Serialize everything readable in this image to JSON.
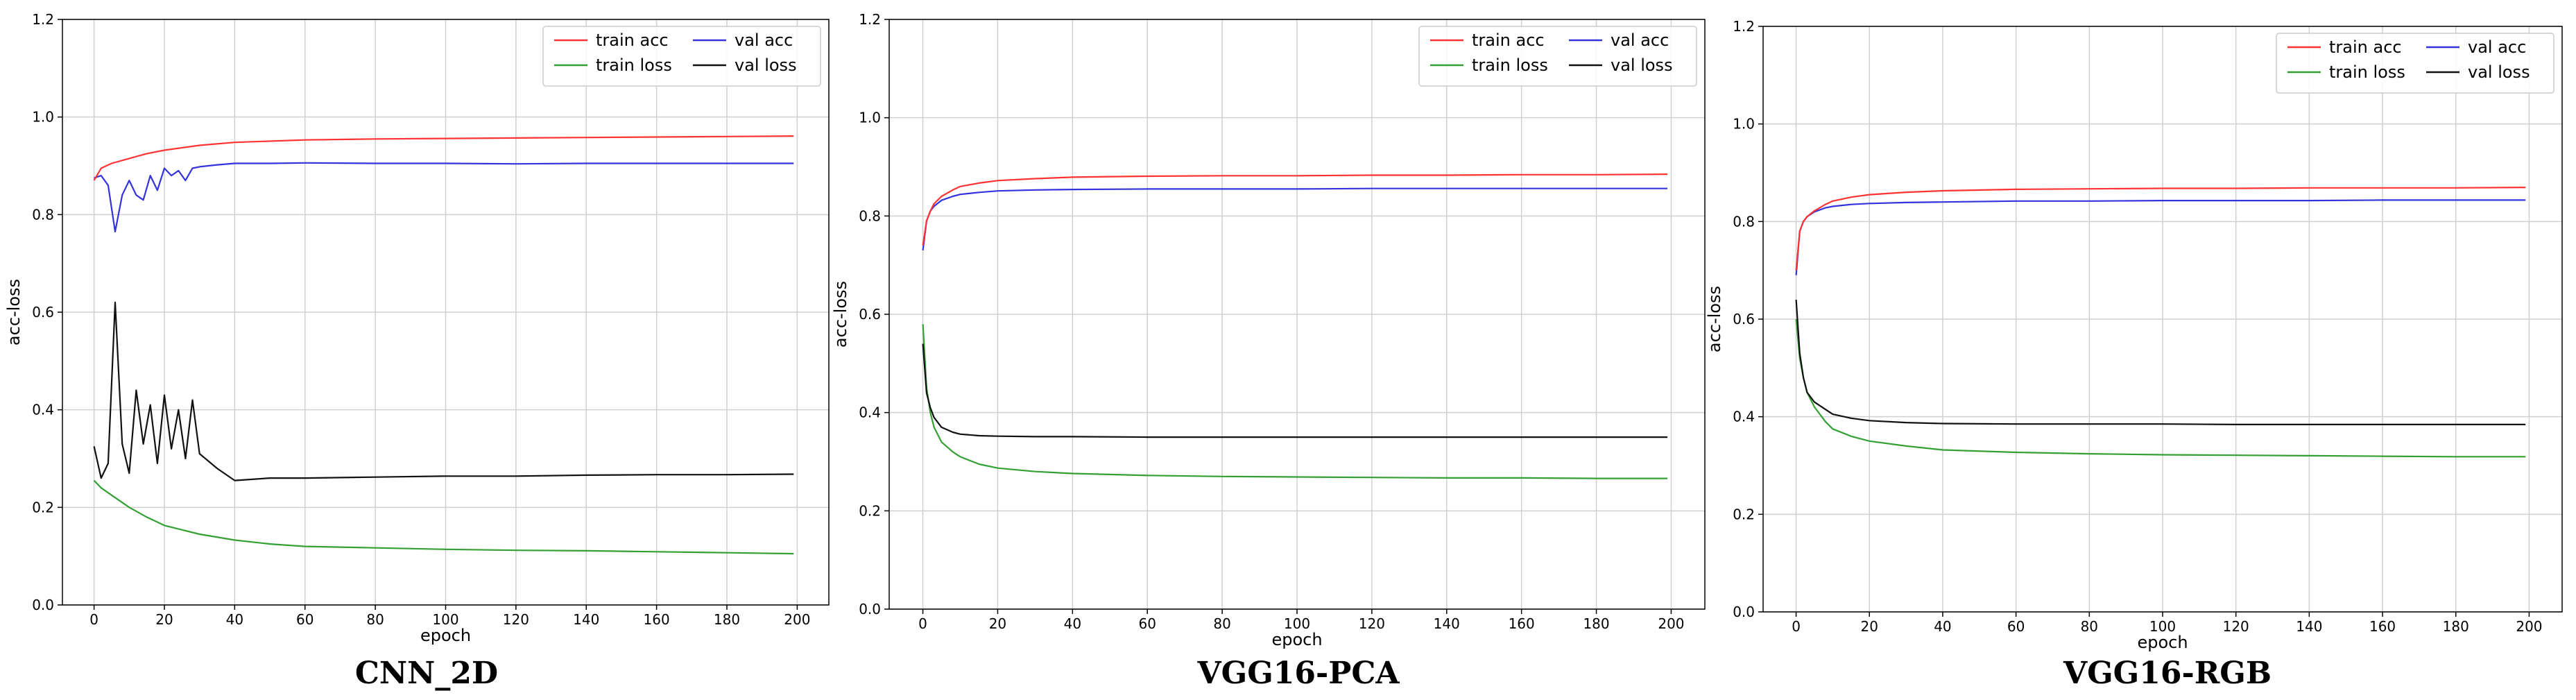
{
  "colors": {
    "train_acc": "#ff3333",
    "val_acc": "#3333dd",
    "train_loss": "#33a033",
    "val_loss": "#111111"
  },
  "chart_data": [
    {
      "type": "line",
      "title": "CNN_2D",
      "xlabel": "epoch",
      "ylabel": "acc-loss",
      "xlim": [
        -9,
        209
      ],
      "ylim": [
        0.0,
        1.2
      ],
      "xticks": [
        0,
        20,
        40,
        60,
        80,
        100,
        120,
        140,
        160,
        180,
        200
      ],
      "yticks": [
        0.0,
        0.2,
        0.4,
        0.6,
        0.8,
        1.0,
        1.2
      ],
      "grid": true,
      "legend_position": "top-right",
      "series": [
        {
          "name": "train acc",
          "x": [
            0,
            2,
            5,
            10,
            15,
            20,
            30,
            40,
            60,
            80,
            100,
            120,
            140,
            160,
            180,
            199
          ],
          "y": [
            0.87,
            0.895,
            0.905,
            0.915,
            0.925,
            0.932,
            0.942,
            0.948,
            0.953,
            0.955,
            0.956,
            0.957,
            0.958,
            0.959,
            0.96,
            0.961
          ]
        },
        {
          "name": "val acc",
          "x": [
            0,
            2,
            4,
            6,
            8,
            10,
            12,
            14,
            16,
            18,
            20,
            22,
            24,
            26,
            28,
            30,
            35,
            40,
            50,
            60,
            80,
            100,
            120,
            140,
            160,
            180,
            199
          ],
          "y": [
            0.875,
            0.88,
            0.86,
            0.765,
            0.84,
            0.87,
            0.84,
            0.83,
            0.88,
            0.85,
            0.895,
            0.88,
            0.89,
            0.87,
            0.895,
            0.898,
            0.902,
            0.905,
            0.905,
            0.906,
            0.905,
            0.905,
            0.904,
            0.905,
            0.905,
            0.905,
            0.905
          ]
        },
        {
          "name": "train loss",
          "x": [
            0,
            2,
            5,
            10,
            15,
            20,
            30,
            40,
            50,
            60,
            80,
            100,
            120,
            140,
            160,
            180,
            199
          ],
          "y": [
            0.255,
            0.24,
            0.225,
            0.2,
            0.18,
            0.163,
            0.145,
            0.133,
            0.125,
            0.12,
            0.117,
            0.114,
            0.112,
            0.111,
            0.109,
            0.107,
            0.105
          ]
        },
        {
          "name": "val loss",
          "x": [
            0,
            2,
            4,
            6,
            8,
            10,
            12,
            14,
            16,
            18,
            20,
            22,
            24,
            26,
            28,
            30,
            35,
            40,
            50,
            60,
            80,
            100,
            120,
            140,
            160,
            180,
            199
          ],
          "y": [
            0.325,
            0.26,
            0.29,
            0.62,
            0.33,
            0.27,
            0.44,
            0.33,
            0.41,
            0.29,
            0.43,
            0.32,
            0.4,
            0.3,
            0.42,
            0.31,
            0.28,
            0.255,
            0.26,
            0.26,
            0.262,
            0.264,
            0.264,
            0.266,
            0.267,
            0.267,
            0.268
          ]
        }
      ]
    },
    {
      "type": "line",
      "title": "VGG16-PCA",
      "xlabel": "epoch",
      "ylabel": "acc-loss",
      "xlim": [
        -9,
        209
      ],
      "ylim": [
        0.0,
        1.2
      ],
      "xticks": [
        0,
        20,
        40,
        60,
        80,
        100,
        120,
        140,
        160,
        180,
        200
      ],
      "yticks": [
        0.0,
        0.2,
        0.4,
        0.6,
        0.8,
        1.0,
        1.2
      ],
      "grid": true,
      "legend_position": "top-right",
      "series": [
        {
          "name": "train acc",
          "x": [
            0,
            1,
            2,
            3,
            5,
            8,
            10,
            15,
            20,
            30,
            40,
            60,
            80,
            100,
            120,
            140,
            160,
            180,
            199
          ],
          "y": [
            0.74,
            0.79,
            0.81,
            0.825,
            0.84,
            0.853,
            0.86,
            0.867,
            0.872,
            0.876,
            0.879,
            0.881,
            0.882,
            0.882,
            0.883,
            0.883,
            0.884,
            0.884,
            0.885
          ]
        },
        {
          "name": "val acc",
          "x": [
            0,
            1,
            2,
            3,
            5,
            8,
            10,
            15,
            20,
            30,
            40,
            60,
            80,
            100,
            120,
            140,
            160,
            180,
            199
          ],
          "y": [
            0.73,
            0.79,
            0.81,
            0.82,
            0.832,
            0.84,
            0.844,
            0.848,
            0.851,
            0.853,
            0.854,
            0.855,
            0.855,
            0.855,
            0.856,
            0.856,
            0.856,
            0.856,
            0.856
          ]
        },
        {
          "name": "train loss",
          "x": [
            0,
            1,
            2,
            3,
            5,
            8,
            10,
            15,
            20,
            30,
            40,
            60,
            80,
            100,
            120,
            140,
            160,
            180,
            199
          ],
          "y": [
            0.58,
            0.45,
            0.4,
            0.37,
            0.34,
            0.32,
            0.31,
            0.295,
            0.287,
            0.28,
            0.276,
            0.272,
            0.27,
            0.269,
            0.268,
            0.267,
            0.267,
            0.266,
            0.266
          ]
        },
        {
          "name": "val loss",
          "x": [
            0,
            1,
            2,
            3,
            5,
            8,
            10,
            15,
            20,
            30,
            40,
            60,
            80,
            100,
            120,
            140,
            160,
            180,
            199
          ],
          "y": [
            0.54,
            0.44,
            0.41,
            0.39,
            0.37,
            0.36,
            0.356,
            0.353,
            0.352,
            0.351,
            0.351,
            0.35,
            0.35,
            0.35,
            0.35,
            0.35,
            0.35,
            0.35,
            0.35
          ]
        }
      ]
    },
    {
      "type": "line",
      "title": "VGG16-RGB",
      "xlabel": "epoch",
      "ylabel": "acc-loss",
      "xlim": [
        -9,
        209
      ],
      "ylim": [
        0.0,
        1.2
      ],
      "xticks": [
        0,
        20,
        40,
        60,
        80,
        100,
        120,
        140,
        160,
        180,
        200
      ],
      "yticks": [
        0.0,
        0.2,
        0.4,
        0.6,
        0.8,
        1.0,
        1.2
      ],
      "grid": true,
      "legend_position": "top-right",
      "series": [
        {
          "name": "train acc",
          "x": [
            0,
            1,
            2,
            3,
            5,
            8,
            10,
            15,
            20,
            30,
            40,
            60,
            80,
            100,
            120,
            140,
            160,
            180,
            199
          ],
          "y": [
            0.7,
            0.78,
            0.8,
            0.81,
            0.822,
            0.835,
            0.842,
            0.85,
            0.855,
            0.86,
            0.863,
            0.866,
            0.867,
            0.868,
            0.868,
            0.869,
            0.869,
            0.869,
            0.87
          ]
        },
        {
          "name": "val acc",
          "x": [
            0,
            1,
            2,
            3,
            5,
            8,
            10,
            15,
            20,
            30,
            40,
            60,
            80,
            100,
            120,
            140,
            160,
            180,
            199
          ],
          "y": [
            0.69,
            0.78,
            0.8,
            0.81,
            0.82,
            0.828,
            0.831,
            0.835,
            0.837,
            0.839,
            0.84,
            0.842,
            0.842,
            0.843,
            0.843,
            0.843,
            0.844,
            0.844,
            0.844
          ]
        },
        {
          "name": "train loss",
          "x": [
            0,
            1,
            2,
            3,
            5,
            8,
            10,
            15,
            20,
            30,
            40,
            60,
            80,
            100,
            120,
            140,
            160,
            180,
            199
          ],
          "y": [
            0.6,
            0.52,
            0.48,
            0.45,
            0.42,
            0.39,
            0.375,
            0.36,
            0.35,
            0.34,
            0.332,
            0.327,
            0.324,
            0.322,
            0.321,
            0.32,
            0.319,
            0.318,
            0.318
          ]
        },
        {
          "name": "val loss",
          "x": [
            0,
            1,
            2,
            3,
            5,
            8,
            10,
            15,
            20,
            30,
            40,
            60,
            80,
            100,
            120,
            140,
            160,
            180,
            199
          ],
          "y": [
            0.64,
            0.53,
            0.48,
            0.45,
            0.43,
            0.415,
            0.405,
            0.397,
            0.392,
            0.388,
            0.386,
            0.385,
            0.385,
            0.385,
            0.384,
            0.384,
            0.384,
            0.384,
            0.384
          ]
        }
      ]
    }
  ]
}
